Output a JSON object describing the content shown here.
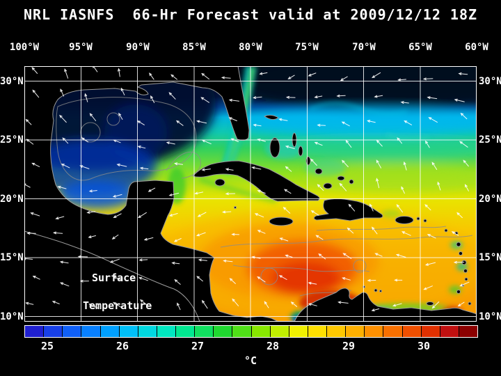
{
  "title": "NRL IASNFS  66-Hr Forecast valid at 2009/12/12 18Z",
  "axes": {
    "top": [
      "100°W",
      "95°W",
      "90°W",
      "85°W",
      "80°W",
      "75°W",
      "70°W",
      "65°W",
      "60°W"
    ],
    "left": [
      "30°N",
      "25°N",
      "20°N",
      "15°N",
      "10°N"
    ],
    "right": [
      "30°N",
      "25°N",
      "20°N",
      "15°N",
      "10°N"
    ]
  },
  "overlay": {
    "line1": "Surface",
    "line2": "Temperature"
  },
  "colorbar": {
    "ticks": [
      "25",
      "26",
      "27",
      "28",
      "29",
      "30"
    ],
    "unit": "°C",
    "segments": [
      "#2020d0",
      "#1840e8",
      "#1060f8",
      "#0880ff",
      "#00a0ff",
      "#00c0f8",
      "#00d8e0",
      "#00e8c0",
      "#00e890",
      "#10e060",
      "#20d830",
      "#50e018",
      "#88e800",
      "#c0f000",
      "#f0f000",
      "#ffe000",
      "#ffc800",
      "#ffb000",
      "#ff9000",
      "#f87000",
      "#f05000",
      "#e03000",
      "#c01010",
      "#8b0000"
    ]
  }
}
